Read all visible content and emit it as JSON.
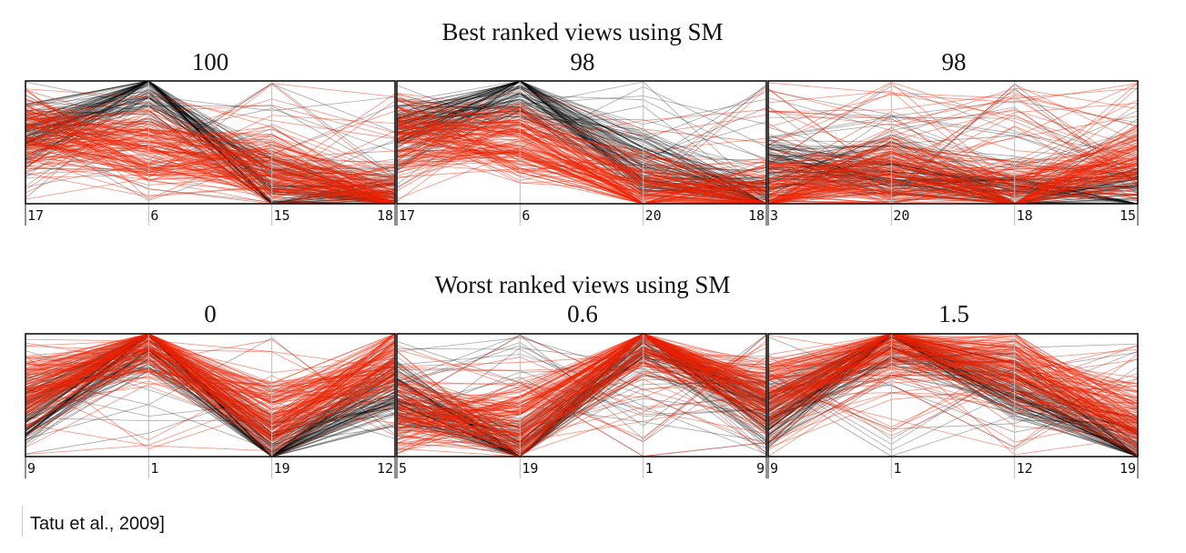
{
  "citation": "Tatu et al., 2009]",
  "chart_data": {
    "type": "parallel-coordinates",
    "series_colors": {
      "class_a": "#000000",
      "class_b": "#ee2200"
    },
    "rows": [
      {
        "title": "Best ranked views using SM",
        "panels": [
          {
            "score": "100",
            "axes": [
              "17",
              "6",
              "15",
              "18"
            ],
            "black_profile": [
              0.55,
              0.93,
              0.12,
              0.01
            ],
            "red_profile": [
              0.58,
              0.45,
              0.28,
              0.02
            ]
          },
          {
            "score": "98",
            "axes": [
              "17",
              "6",
              "20",
              "18"
            ],
            "black_profile": [
              0.55,
              0.93,
              0.3,
              0.02
            ],
            "red_profile": [
              0.55,
              0.5,
              0.12,
              0.03
            ]
          },
          {
            "score": "98",
            "axes": [
              "3",
              "20",
              "18",
              "15"
            ],
            "black_profile": [
              0.3,
              0.28,
              0.06,
              0.08
            ],
            "red_profile": [
              0.12,
              0.25,
              0.04,
              0.35
            ]
          }
        ]
      },
      {
        "title": "Worst ranked views using SM",
        "panels": [
          {
            "score": "0",
            "axes": [
              "9",
              "1",
              "19",
              "12"
            ],
            "black_profile": [
              0.35,
              0.97,
              0.05,
              0.55
            ],
            "red_profile": [
              0.5,
              0.95,
              0.3,
              0.75
            ]
          },
          {
            "score": "0.6",
            "axes": [
              "5",
              "19",
              "1",
              "9"
            ],
            "black_profile": [
              0.5,
              0.05,
              0.97,
              0.35
            ],
            "red_profile": [
              0.35,
              0.3,
              0.95,
              0.5
            ]
          },
          {
            "score": "1.5",
            "axes": [
              "9",
              "1",
              "12",
              "19"
            ],
            "black_profile": [
              0.35,
              0.97,
              0.55,
              0.05
            ],
            "red_profile": [
              0.5,
              0.95,
              0.75,
              0.3
            ]
          }
        ]
      }
    ]
  }
}
